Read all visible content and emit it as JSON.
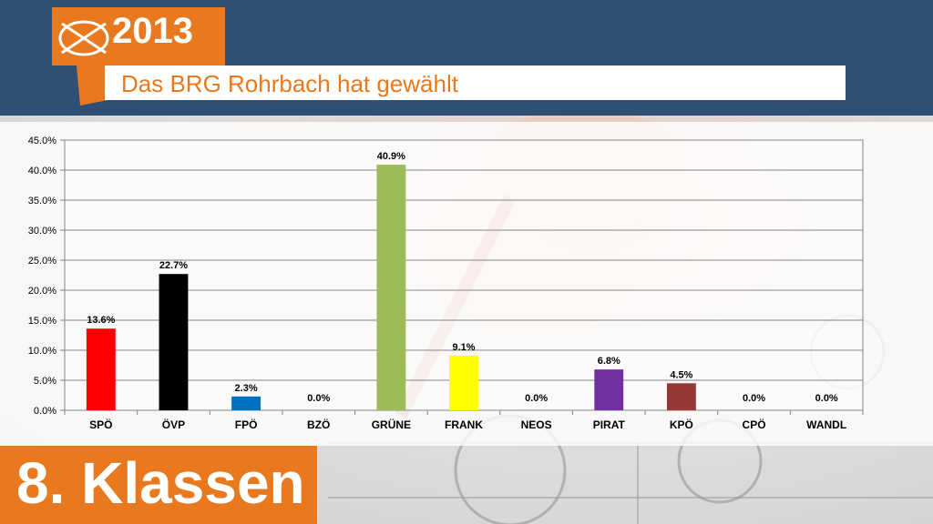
{
  "header": {
    "year": "2013",
    "subtitle": "Das BRG Rohrbach hat gewählt"
  },
  "footer": {
    "class_label": "8. Klassen"
  },
  "colors": {
    "accent": "#e8791f",
    "banner": "#2f4f75"
  },
  "chart_data": {
    "type": "bar",
    "categories": [
      "SPÖ",
      "ÖVP",
      "FPÖ",
      "BZÖ",
      "GRÜNE",
      "FRANK",
      "NEOS",
      "PIRAT",
      "KPÖ",
      "CPÖ",
      "WANDL"
    ],
    "values": [
      13.6,
      22.7,
      2.3,
      0.0,
      40.9,
      9.1,
      0.0,
      6.8,
      4.5,
      0.0,
      0.0
    ],
    "data_labels": [
      "13.6%",
      "22.7%",
      "2.3%",
      "0.0%",
      "40.9%",
      "9.1%",
      "0.0%",
      "6.8%",
      "4.5%",
      "0.0%",
      "0.0%"
    ],
    "bar_colors": [
      "#ff0000",
      "#000000",
      "#0070c0",
      "#000000",
      "#9bbb59",
      "#ffff00",
      "#000000",
      "#7030a0",
      "#953735",
      "#000000",
      "#000000"
    ],
    "ylim": [
      0,
      45
    ],
    "yticks": [
      "0.0%",
      "5.0%",
      "10.0%",
      "15.0%",
      "20.0%",
      "25.0%",
      "30.0%",
      "35.0%",
      "40.0%",
      "45.0%"
    ],
    "ytick_values": [
      0,
      5,
      10,
      15,
      20,
      25,
      30,
      35,
      40,
      45
    ],
    "grid": true,
    "legend": "none"
  }
}
